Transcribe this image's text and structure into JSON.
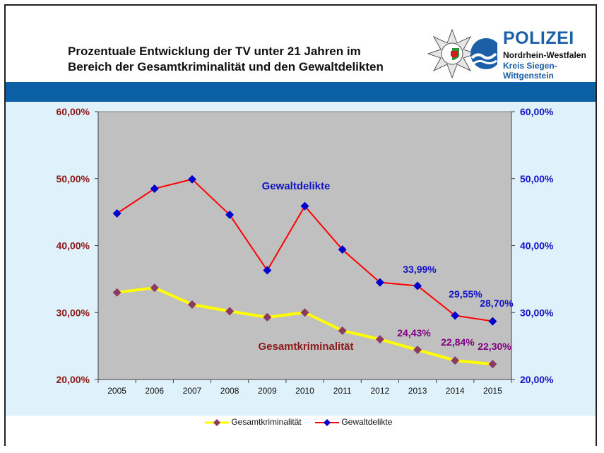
{
  "header": {
    "title_line1": "Prozentuale Entwicklung der TV unter 21 Jahren im",
    "title_line2": "Bereich der Gesamtkriminalität  und den Gewaltdelikten"
  },
  "logo": {
    "title": "POLIZEI",
    "line1": "Nordrhein-Westfalen",
    "line2": "Kreis Siegen-",
    "line3": "Wittgenstein",
    "icon": "police-star-emblem-icon",
    "colors": {
      "brand_blue": "#1a5fa8",
      "band_blue": "#0a5fa5",
      "green": "#2f8f3a",
      "red": "#d21c1c"
    }
  },
  "chart_data": {
    "type": "line",
    "categories": [
      "2005",
      "2006",
      "2007",
      "2008",
      "2009",
      "2010",
      "2011",
      "2012",
      "2013",
      "2014",
      "2015"
    ],
    "y_left_ticks": [
      "60,00%",
      "50,00%",
      "40,00%",
      "30,00%",
      "20,00%"
    ],
    "y_right_ticks": [
      "60,00%",
      "50,00%",
      "40,00%",
      "30,00%",
      "20,00%"
    ],
    "ylim": [
      20,
      60
    ],
    "grid": false,
    "legend_position": "bottom",
    "series": [
      {
        "name": "Gesamtkriminalität",
        "color": "#ffff00",
        "marker_color": "#8b3a62",
        "values": [
          33.0,
          33.7,
          31.2,
          30.2,
          29.3,
          30.0,
          27.3,
          26.0,
          24.43,
          22.84,
          22.3
        ]
      },
      {
        "name": "Gewaltdelikte",
        "color": "#ff0000",
        "marker_color": "#0000cc",
        "values": [
          44.8,
          48.5,
          49.9,
          44.6,
          36.3,
          45.9,
          39.4,
          34.5,
          33.99,
          29.55,
          28.7
        ]
      }
    ],
    "annotations": [
      {
        "text": "Gewaltdelikte",
        "color": "#1414c8"
      },
      {
        "text": "Gesamtkriminalität",
        "color": "#8b1a1a"
      },
      {
        "text": "33,99%",
        "color": "#1414c8"
      },
      {
        "text": "29,55%",
        "color": "#1414c8"
      },
      {
        "text": "28,70%",
        "color": "#1414c8"
      },
      {
        "text": "24,43%",
        "color": "#800080"
      },
      {
        "text": "22,84%",
        "color": "#800080"
      },
      {
        "text": "22,30%",
        "color": "#800080"
      }
    ]
  }
}
